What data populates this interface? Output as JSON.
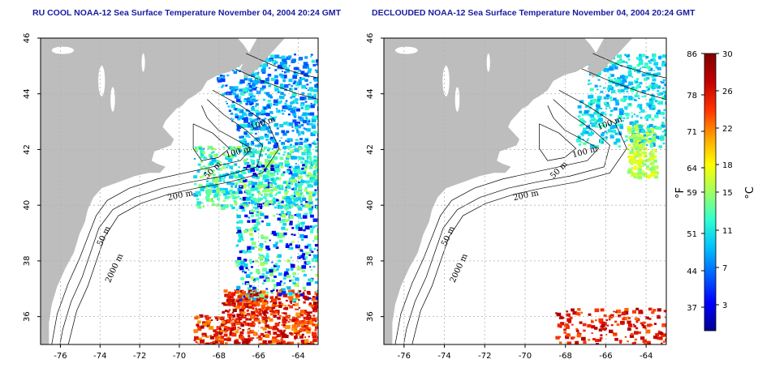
{
  "panels": [
    {
      "id": "left",
      "title": "RU COOL NOAA-12 Sea Surface Temperature November 04, 2004 20:24 GMT",
      "contour_labels": [
        "100 m",
        "100 m",
        "50 m",
        "200 m",
        "50 m",
        "2000 m"
      ]
    },
    {
      "id": "right",
      "title": "DECLOUDED NOAA-12 Sea Surface Temperature November 04, 2004 20:24 GMT",
      "contour_labels": [
        "100 m",
        "100 m",
        "50 m",
        "200 m",
        "50 m",
        "2000 m"
      ]
    }
  ],
  "map": {
    "lon_range": [
      -77,
      -63
    ],
    "lat_range": [
      35,
      46
    ],
    "lon_ticks": [
      "-76",
      "-74",
      "-72",
      "-70",
      "-68",
      "-66",
      "-64"
    ],
    "lat_ticks": [
      "36",
      "38",
      "40",
      "42",
      "44",
      "46"
    ],
    "land_color": "#bdbdbd",
    "ocean_color": "#ffffff",
    "grid": true
  },
  "colorbar": {
    "fahrenheit_ticks": [
      "86",
      "78",
      "71",
      "64",
      "59",
      "51",
      "44",
      "37"
    ],
    "celsius_ticks": [
      "30",
      "26",
      "22",
      "18",
      "15",
      "11",
      "7",
      "3"
    ],
    "fahrenheit_unit": "°F",
    "celsius_unit": "°C",
    "range_c": [
      0,
      30
    ],
    "colors": [
      "#00008f",
      "#0000ff",
      "#0060ff",
      "#00c0ff",
      "#30ffd0",
      "#a0ff60",
      "#ffff00",
      "#ffa000",
      "#ff3000",
      "#c00000",
      "#800000"
    ]
  }
}
